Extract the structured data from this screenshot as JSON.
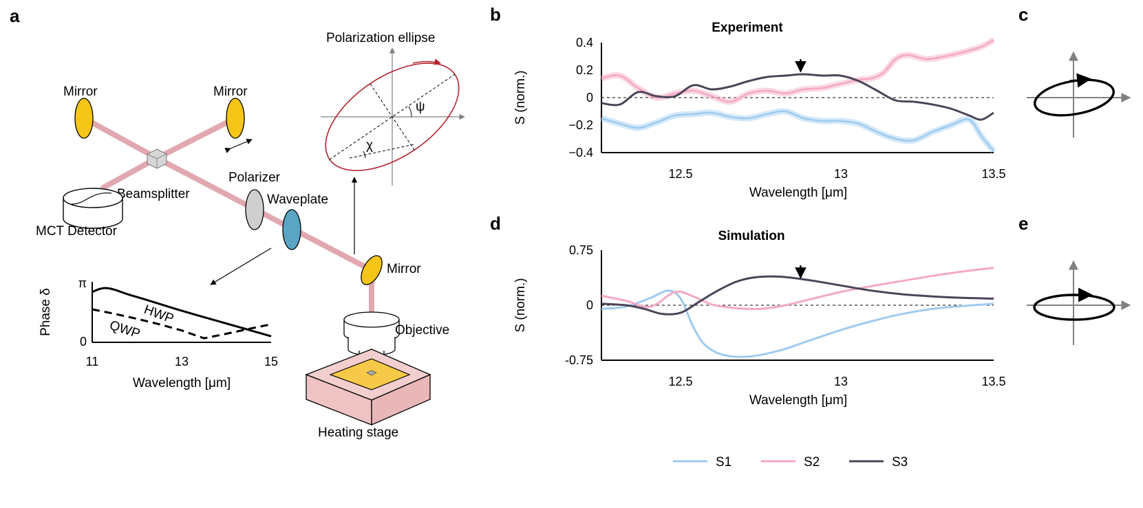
{
  "panels": {
    "a": "a",
    "b": "b",
    "c": "c",
    "d": "d",
    "e": "e"
  },
  "setup": {
    "mirror1": "Mirror",
    "mirror2": "Mirror",
    "mirror3": "Mirror",
    "beamsplitter": "Beamsplitter",
    "detector": "MCT Detector",
    "polarizer": "Polarizer",
    "waveplate": "Waveplate",
    "objective": "Objective",
    "heating_stage": "Heating stage",
    "ellipse_title": "Polarization ellipse",
    "psi": "ψ",
    "chi": "χ"
  },
  "colors": {
    "S1": "#9ecbf0",
    "S2": "#f4a8c3",
    "S3": "#4b4458",
    "mirror": "#f5c518",
    "waveplate": "#5aa5c4",
    "polarizer": "#cfcfcf",
    "beam": "#d98c95",
    "stage": "#f2cece"
  },
  "chart_data": [
    {
      "id": "inset-phase",
      "type": "line",
      "xlabel": "Wavelength [μm]",
      "ylabel": "Phase δ",
      "xlim": [
        11,
        15
      ],
      "ylim": [
        0,
        3.14159
      ],
      "xticks": [
        "11",
        "13",
        "15"
      ],
      "yticks": [
        "0",
        "π"
      ],
      "series": [
        {
          "name": "HWP",
          "style": "solid",
          "x": [
            11.0,
            11.15,
            11.3,
            11.5,
            11.8,
            12.2,
            12.7,
            13.2,
            13.8,
            14.4,
            15.0
          ],
          "y": [
            2.86,
            3.03,
            3.1,
            3.0,
            2.72,
            2.4,
            1.98,
            1.58,
            1.12,
            0.66,
            0.2
          ]
        },
        {
          "name": "QWP",
          "style": "dashed",
          "x": [
            11.0,
            11.5,
            12.0,
            12.5,
            13.0,
            13.5,
            14.0,
            14.5,
            15.0
          ],
          "y": [
            1.82,
            1.55,
            1.25,
            0.92,
            0.55,
            0.08,
            0.35,
            0.64,
            0.92
          ]
        }
      ]
    },
    {
      "id": "experiment",
      "type": "line",
      "title": "Experiment",
      "xlabel": "Wavelength [μm]",
      "ylabel": "S (norm.)",
      "xlim": [
        12.22,
        13.5
      ],
      "ylim": [
        -0.4,
        0.4
      ],
      "xticks": [
        "12.5",
        "13",
        "13.5"
      ],
      "yticks": [
        "−0.4",
        "−0.2",
        "0",
        "0.2",
        "0.4"
      ],
      "arrow_at": 12.87,
      "series": [
        {
          "name": "S1",
          "x": [
            12.22,
            12.28,
            12.34,
            12.4,
            12.46,
            12.52,
            12.58,
            12.64,
            12.7,
            12.76,
            12.82,
            12.88,
            12.94,
            13.0,
            13.06,
            13.12,
            13.18,
            13.24,
            13.3,
            13.36,
            13.42,
            13.46,
            13.5
          ],
          "y": [
            -0.15,
            -0.19,
            -0.22,
            -0.18,
            -0.13,
            -0.12,
            -0.11,
            -0.14,
            -0.15,
            -0.12,
            -0.1,
            -0.15,
            -0.17,
            -0.17,
            -0.19,
            -0.25,
            -0.3,
            -0.31,
            -0.25,
            -0.2,
            -0.16,
            -0.28,
            -0.39
          ]
        },
        {
          "name": "S2",
          "x": [
            12.22,
            12.28,
            12.34,
            12.4,
            12.46,
            12.52,
            12.58,
            12.64,
            12.7,
            12.76,
            12.82,
            12.88,
            12.94,
            13.0,
            13.06,
            13.1,
            13.14,
            13.18,
            13.22,
            13.28,
            13.34,
            13.4,
            13.46,
            13.5
          ],
          "y": [
            0.14,
            0.16,
            0.07,
            0.0,
            0.03,
            0.05,
            0.01,
            -0.03,
            0.03,
            0.05,
            0.03,
            0.06,
            0.07,
            0.1,
            0.13,
            0.14,
            0.18,
            0.28,
            0.31,
            0.28,
            0.3,
            0.33,
            0.37,
            0.42
          ]
        },
        {
          "name": "S3",
          "x": [
            12.22,
            12.28,
            12.34,
            12.4,
            12.46,
            12.52,
            12.58,
            12.64,
            12.7,
            12.76,
            12.82,
            12.88,
            12.94,
            13.0,
            13.06,
            13.12,
            13.18,
            13.24,
            13.3,
            13.36,
            13.42,
            13.46,
            13.5
          ],
          "y": [
            -0.04,
            -0.05,
            0.04,
            0.01,
            0.01,
            0.09,
            0.06,
            0.08,
            0.12,
            0.15,
            0.16,
            0.17,
            0.16,
            0.16,
            0.12,
            0.05,
            -0.02,
            -0.03,
            -0.05,
            -0.08,
            -0.13,
            -0.16,
            -0.11
          ]
        }
      ]
    },
    {
      "id": "simulation",
      "type": "line",
      "title": "Simulation",
      "xlabel": "Wavelength [μm]",
      "ylabel": "S (norm.)",
      "xlim": [
        12.22,
        13.5
      ],
      "ylim": [
        -0.75,
        0.75
      ],
      "xticks": [
        "12.5",
        "13",
        "13.5"
      ],
      "yticks": [
        "-0.75",
        "0",
        "0.75"
      ],
      "arrow_at": 12.87,
      "series": [
        {
          "name": "S1",
          "x": [
            12.22,
            12.3,
            12.38,
            12.44,
            12.48,
            12.52,
            12.56,
            12.62,
            12.7,
            12.8,
            12.9,
            13.0,
            13.1,
            13.2,
            13.3,
            13.4,
            13.5
          ],
          "y": [
            -0.05,
            -0.02,
            0.1,
            0.2,
            0.08,
            -0.3,
            -0.55,
            -0.68,
            -0.7,
            -0.62,
            -0.48,
            -0.34,
            -0.22,
            -0.12,
            -0.05,
            -0.01,
            0.02
          ]
        },
        {
          "name": "S2",
          "x": [
            12.22,
            12.3,
            12.38,
            12.46,
            12.52,
            12.58,
            12.66,
            12.74,
            12.82,
            12.9,
            13.0,
            13.1,
            13.2,
            13.3,
            13.4,
            13.5
          ],
          "y": [
            0.13,
            0.06,
            -0.02,
            0.18,
            0.12,
            0.01,
            -0.04,
            -0.05,
            0.0,
            0.08,
            0.18,
            0.26,
            0.33,
            0.4,
            0.46,
            0.51
          ]
        },
        {
          "name": "S3",
          "x": [
            12.22,
            12.3,
            12.36,
            12.42,
            12.48,
            12.54,
            12.6,
            12.66,
            12.72,
            12.8,
            12.9,
            13.0,
            13.1,
            13.2,
            13.3,
            13.4,
            13.5
          ],
          "y": [
            0.02,
            0.0,
            -0.05,
            -0.12,
            -0.1,
            0.05,
            0.2,
            0.32,
            0.38,
            0.39,
            0.34,
            0.27,
            0.2,
            0.15,
            0.12,
            0.1,
            0.09
          ]
        }
      ]
    }
  ],
  "legend": [
    {
      "label": "S1"
    },
    {
      "label": "S2"
    },
    {
      "label": "S3"
    }
  ]
}
